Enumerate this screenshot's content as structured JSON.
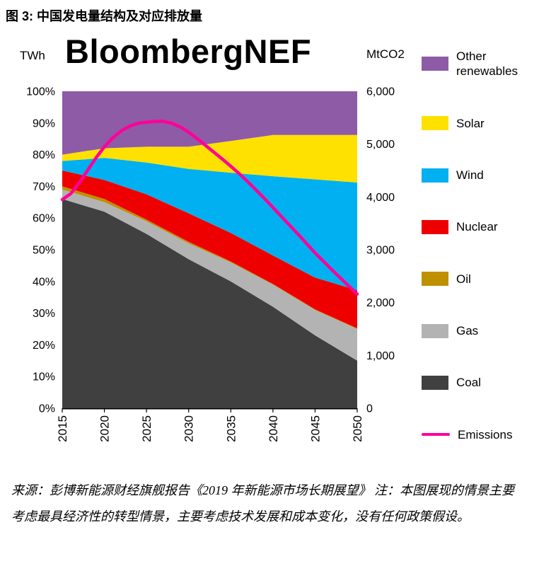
{
  "title": "图 3: 中国发电量结构及对应排放量",
  "watermark": "BloombergNEF",
  "axes": {
    "left_unit": "TWh",
    "right_unit": "MtCO2",
    "left_ticks": [
      "100%",
      "90%",
      "80%",
      "70%",
      "60%",
      "50%",
      "40%",
      "30%",
      "20%",
      "10%",
      "0%"
    ],
    "right_ticks": [
      "6,000",
      "5,000",
      "4,000",
      "3,000",
      "2,000",
      "1,000",
      "0"
    ],
    "x_ticks": [
      "2015",
      "2020",
      "2025",
      "2030",
      "2035",
      "2040",
      "2045",
      "2050"
    ]
  },
  "chart_data": {
    "type": "area",
    "title": "图 3: 中国发电量结构及对应排放量",
    "stacked": true,
    "x_range": [
      2015,
      2050
    ],
    "x": [
      2015,
      2020,
      2025,
      2030,
      2035,
      2040,
      2045,
      2050
    ],
    "left_axis": {
      "label": "TWh",
      "unit": "% share",
      "min": 0,
      "max": 100
    },
    "right_axis": {
      "label": "MtCO2",
      "min": 0,
      "max": 6000
    },
    "series": [
      {
        "name": "Coal",
        "color": "#404040",
        "values": [
          66,
          62,
          55,
          47,
          40,
          32,
          23,
          15
        ]
      },
      {
        "name": "Gas",
        "color": "#B3B3B3",
        "values": [
          3,
          3,
          4,
          5,
          6,
          7,
          8,
          10
        ]
      },
      {
        "name": "Oil",
        "color": "#BF9000",
        "values": [
          1,
          1,
          0.5,
          0.5,
          0.3,
          0.2,
          0.2,
          0.2
        ]
      },
      {
        "name": "Nuclear",
        "color": "#EE0000",
        "values": [
          5,
          6,
          8,
          9,
          9,
          9,
          10,
          12
        ]
      },
      {
        "name": "Wind",
        "color": "#00B0F0",
        "values": [
          3,
          7,
          10,
          14,
          19,
          25,
          31,
          34
        ]
      },
      {
        "name": "Solar",
        "color": "#FFE100",
        "values": [
          2,
          3,
          5,
          7,
          10,
          13,
          14,
          15
        ]
      },
      {
        "name": "Other renewables",
        "color": "#8E5BA6",
        "values": [
          20,
          18,
          17.5,
          17.5,
          15.7,
          13.8,
          13.8,
          13.8
        ]
      }
    ],
    "emissions": {
      "name": "Emissions",
      "color": "#FF0099",
      "axis": "right",
      "x": [
        2015,
        2016,
        2017,
        2018,
        2019,
        2020,
        2021,
        2022,
        2023,
        2024,
        2025,
        2026,
        2027,
        2028,
        2029,
        2030,
        2031,
        2032,
        2033,
        2034,
        2035,
        2036,
        2037,
        2038,
        2039,
        2040,
        2041,
        2042,
        2043,
        2044,
        2045,
        2046,
        2047,
        2048,
        2049,
        2050
      ],
      "values": [
        3950,
        4060,
        4260,
        4500,
        4740,
        4950,
        5120,
        5250,
        5340,
        5395,
        5415,
        5430,
        5430,
        5395,
        5325,
        5225,
        5105,
        4975,
        4845,
        4715,
        4580,
        4440,
        4290,
        4130,
        3970,
        3800,
        3630,
        3460,
        3290,
        3115,
        2940,
        2780,
        2620,
        2465,
        2310,
        2160
      ]
    }
  },
  "legend": [
    {
      "label": "Other renewables",
      "color": "#8E5BA6",
      "type": "area"
    },
    {
      "label": "Solar",
      "color": "#FFE100",
      "type": "area"
    },
    {
      "label": "Wind",
      "color": "#00B0F0",
      "type": "area"
    },
    {
      "label": "Nuclear",
      "color": "#EE0000",
      "type": "area"
    },
    {
      "label": "Oil",
      "color": "#BF9000",
      "type": "area"
    },
    {
      "label": "Gas",
      "color": "#B3B3B3",
      "type": "area"
    },
    {
      "label": "Coal",
      "color": "#404040",
      "type": "area"
    },
    {
      "label": "Emissions",
      "color": "#FF0099",
      "type": "line"
    }
  ],
  "source_note": "来源：彭博新能源财经旗舰报告《2019 年新能源市场长期展望》 注：本图展现的情景主要考虑最具经济性的转型情景，主要考虑技术发展和成本变化，没有任何政策假设。"
}
